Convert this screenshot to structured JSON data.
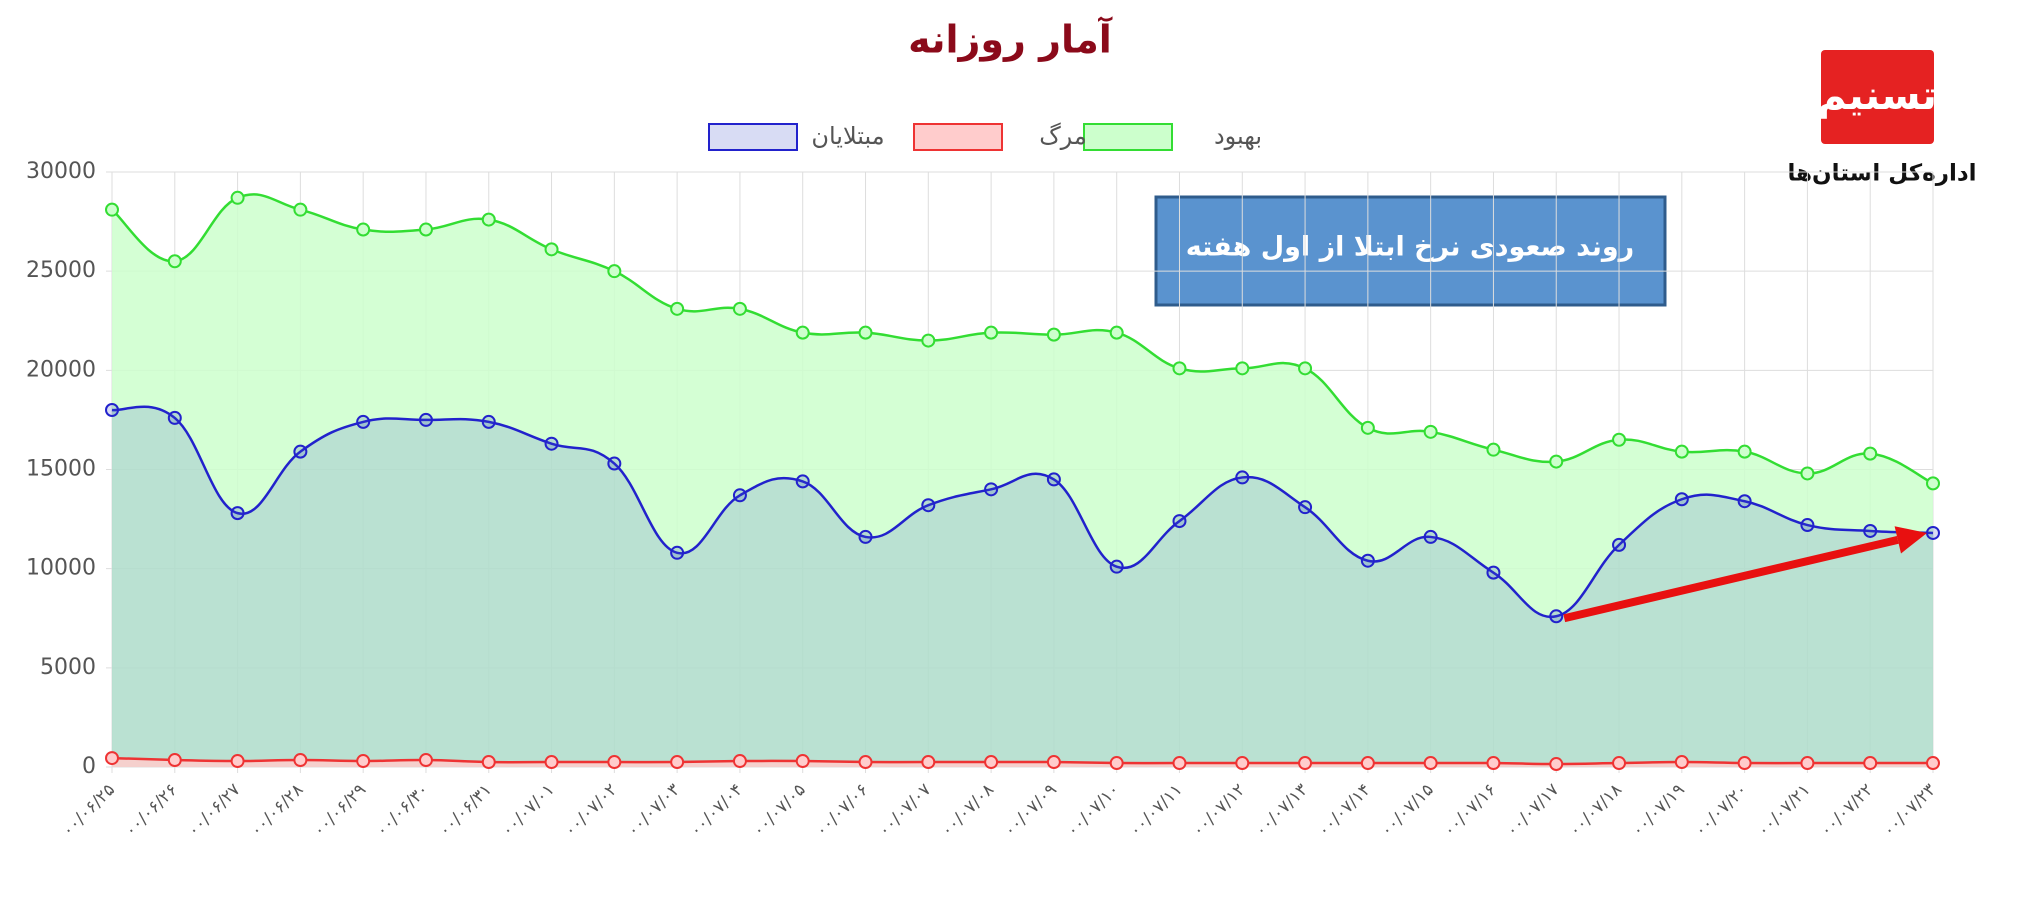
{
  "chart_data": {
    "type": "line",
    "title": "آمار روزانه",
    "annotation": "روند صعودی نرخ ابتلا از اول هفته",
    "logo_caption": "اداره‌کل استان‌ها",
    "categories": [
      "۰۰/۰۶/۲۵",
      "۰۰/۰۶/۲۶",
      "۰۰/۰۶/۲۷",
      "۰۰/۰۶/۲۸",
      "۰۰/۰۶/۲۹",
      "۰۰/۰۶/۳۰",
      "۰۰/۰۶/۳۱",
      "۰۰/۰۷/۰۱",
      "۰۰/۰۷/۰۲",
      "۰۰/۰۷/۰۳",
      "۰۰/۰۷/۰۴",
      "۰۰/۰۷/۰۵",
      "۰۰/۰۷/۰۶",
      "۰۰/۰۷/۰۷",
      "۰۰/۰۷/۰۸",
      "۰۰/۰۷/۰۹",
      "۰۰/۰۷/۱۰",
      "۰۰/۰۷/۱۱",
      "۰۰/۰۷/۱۲",
      "۰۰/۰۷/۱۳",
      "۰۰/۰۷/۱۴",
      "۰۰/۰۷/۱۵",
      "۰۰/۰۷/۱۶",
      "۰۰/۰۷/۱۷",
      "۰۰/۰۷/۱۸",
      "۰۰/۰۷/۱۹",
      "۰۰/۰۷/۲۰",
      "۰۰/۰۷/۲۱",
      "۰۰/۰۷/۲۲",
      "۰۰/۰۷/۲۳"
    ],
    "series": [
      {
        "name": "بهبود",
        "color": "#33dd33",
        "fill": "#ccffcc",
        "values": [
          28100,
          25500,
          28700,
          28100,
          27100,
          27100,
          27600,
          26100,
          25000,
          23100,
          23100,
          21900,
          21900,
          21500,
          21900,
          21800,
          21900,
          20100,
          20100,
          20100,
          17100,
          16900,
          16000,
          15400,
          16500,
          15900,
          15900,
          14800,
          15800,
          14300
        ]
      },
      {
        "name": "مرگ",
        "color": "#ee3333",
        "fill": "#ffcccc",
        "values": [
          450,
          350,
          300,
          350,
          300,
          350,
          250,
          250,
          250,
          250,
          300,
          300,
          250,
          250,
          250,
          250,
          200,
          200,
          200,
          200,
          200,
          200,
          200,
          150,
          200,
          250,
          200,
          200,
          200,
          200
        ]
      },
      {
        "name": "مبتلایان",
        "color": "#2222cc",
        "fill": "rgba(60,80,200,0.2)",
        "values": [
          18000,
          17600,
          12800,
          15900,
          17400,
          17500,
          17400,
          16300,
          15300,
          10800,
          13700,
          14400,
          11600,
          13200,
          14000,
          14500,
          10100,
          12400,
          14600,
          13100,
          10400,
          11600,
          9800,
          7600,
          11200,
          13500,
          13400,
          12200,
          11900,
          11800
        ]
      }
    ],
    "ylim": [
      0,
      30000
    ],
    "yticks": [
      0,
      5000,
      10000,
      15000,
      20000,
      25000,
      30000
    ],
    "grid": true
  }
}
